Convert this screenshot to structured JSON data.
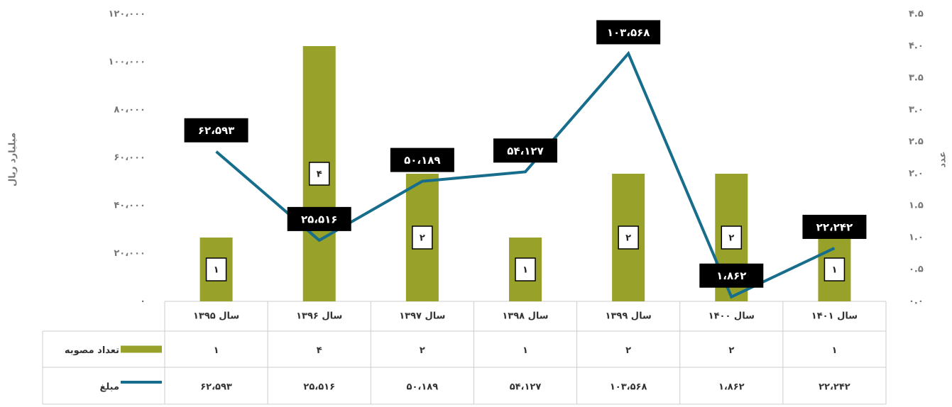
{
  "chart_data": {
    "type": "combo",
    "y_label": "میلیارد ریال",
    "y2_label": "عدد",
    "categories": [
      "سال ۱۳۹۵",
      "سال ۱۳۹۶",
      "سال ۱۳۹۷",
      "سال ۱۳۹۸",
      "سال ۱۳۹۹",
      "سال ۱۴۰۰",
      "سال ۱۴۰۱"
    ],
    "series": [
      {
        "name": "تعداد مصوبه",
        "type": "bar",
        "axis": "y2",
        "color": "#98a12a",
        "values": [
          1,
          4,
          2,
          1,
          2,
          2,
          1
        ],
        "value_labels": [
          "۱",
          "۴",
          "۲",
          "۱",
          "۲",
          "۲",
          "۱"
        ]
      },
      {
        "name": "مبلغ",
        "type": "line",
        "color": "#176d8c",
        "values": [
          62593,
          25516,
          50189,
          54127,
          103568,
          1862,
          22242
        ],
        "value_labels": [
          "۶۲،۵۹۳",
          "۲۵،۵۱۶",
          "۵۰،۱۸۹",
          "۵۴،۱۲۷",
          "۱۰۳،۵۶۸",
          "۱،۸۶۲",
          "۲۲،۲۴۲"
        ]
      }
    ],
    "ylim": [
      0,
      120000
    ],
    "yticks": [
      {
        "value": 0,
        "label": "۰"
      },
      {
        "value": 20000,
        "label": "۲۰،۰۰۰"
      },
      {
        "value": 40000,
        "label": "۴۰،۰۰۰"
      },
      {
        "value": 60000,
        "label": "۶۰،۰۰۰"
      },
      {
        "value": 80000,
        "label": "۸۰،۰۰۰"
      },
      {
        "value": 100000,
        "label": "۱۰۰،۰۰۰"
      },
      {
        "value": 120000,
        "label": "۱۲۰،۰۰۰"
      }
    ],
    "y2lim": [
      0,
      4.5
    ],
    "y2ticks": [
      {
        "value": 0,
        "label": "۰.۰"
      },
      {
        "value": 0.5,
        "label": "۰.۵"
      },
      {
        "value": 1,
        "label": "۱.۰"
      },
      {
        "value": 1.5,
        "label": "۱.۵"
      },
      {
        "value": 2,
        "label": "۲.۰"
      },
      {
        "value": 2.5,
        "label": "۲.۵"
      },
      {
        "value": 3,
        "label": "۳.۰"
      },
      {
        "value": 3.5,
        "label": "۳.۵"
      },
      {
        "value": 4,
        "label": "۴.۰"
      },
      {
        "value": 4.5,
        "label": "۴.۵"
      }
    ]
  }
}
